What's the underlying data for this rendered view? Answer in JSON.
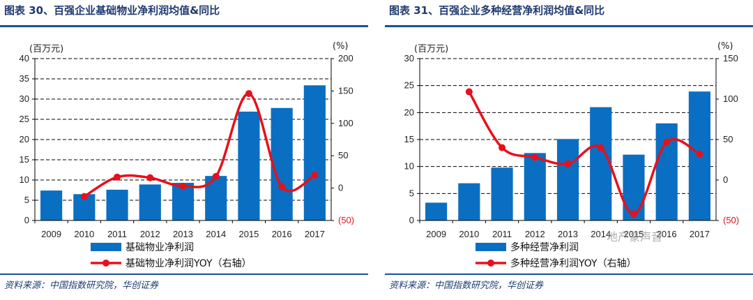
{
  "charts": [
    {
      "title": "图表 30、百强企业基础物业净利润均值&同比",
      "source": "资料来源：中国指数研究院，华创证券",
      "left_unit": "(百万元)",
      "right_unit": "(%)",
      "colors": {
        "bar": "#0a6fc2",
        "line": "#e8101a",
        "title": "#1f3a70",
        "rule": "#1f4e9a"
      },
      "chart_data": {
        "type": "bar",
        "categories": [
          "2009",
          "2010",
          "2011",
          "2012",
          "2013",
          "2014",
          "2015",
          "2016",
          "2017"
        ],
        "series": [
          {
            "name": "基础物业净利润",
            "axis": "left",
            "kind": "bar",
            "values": [
              7.4,
              6.5,
              7.6,
              8.9,
              9.3,
              11.0,
              26.9,
              27.8,
              33.4
            ]
          },
          {
            "name": "基础物业净利润YOY（右轴）",
            "axis": "right",
            "kind": "line",
            "values": [
              null,
              -13,
              17,
              16,
              3,
              18,
              146,
              2,
              20
            ]
          }
        ],
        "ylim_left": [
          0,
          40
        ],
        "ylim_right": [
          -50,
          200
        ],
        "yticks_left": [
          "0",
          "5",
          "10",
          "15",
          "20",
          "25",
          "30",
          "35",
          "40"
        ],
        "yticks_right": [
          "(50)",
          "0",
          "50",
          "100",
          "150",
          "200"
        ]
      }
    },
    {
      "title": "图表 31、百强企业多种经营净利润均值&同比",
      "source": "资料来源：中国指数研究院，华创证券",
      "left_unit": "(百万元)",
      "right_unit": "(%)",
      "watermark": "地产豪声音",
      "colors": {
        "bar": "#0a6fc2",
        "line": "#e8101a",
        "title": "#1f3a70",
        "rule": "#1f4e9a"
      },
      "chart_data": {
        "type": "bar",
        "categories": [
          "2009",
          "2010",
          "2011",
          "2012",
          "2013",
          "2014",
          "2015",
          "2016",
          "2017"
        ],
        "series": [
          {
            "name": "多种经营净利润",
            "axis": "left",
            "kind": "bar",
            "values": [
              3.3,
              6.9,
              9.8,
              12.5,
              15.1,
              21.0,
              12.2,
              18.0,
              23.9
            ]
          },
          {
            "name": "多种经营净利润YOY（右轴）",
            "axis": "right",
            "kind": "line",
            "values": [
              null,
              109,
              40,
              28,
              20,
              40,
              -42,
              47,
              32
            ]
          }
        ],
        "ylim_left": [
          0,
          30
        ],
        "ylim_right": [
          -50,
          150
        ],
        "yticks_left": [
          "0",
          "5",
          "10",
          "15",
          "20",
          "25",
          "30"
        ],
        "yticks_right": [
          "(50)",
          "0",
          "50",
          "100",
          "150"
        ]
      }
    }
  ]
}
